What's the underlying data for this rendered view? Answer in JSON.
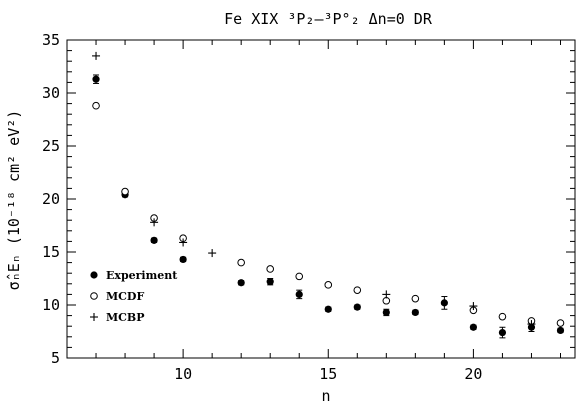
{
  "chart_data": {
    "type": "scatter",
    "title": "Fe XIX ³P₂–³P°₂ Δn=0 DR",
    "xlabel": "n",
    "ylabel": "σ̂ₙEₙ (10⁻¹⁸ cm² eV²)",
    "xlim": [
      6,
      23.5
    ],
    "ylim": [
      5,
      35
    ],
    "xticks": [
      10,
      15,
      20
    ],
    "yticks": [
      5,
      10,
      15,
      20,
      25,
      30,
      35
    ],
    "grid": false,
    "legend_position": "bottom-left",
    "series": [
      {
        "name": "Experiment",
        "marker": "filled-circle",
        "color": "#000000",
        "x": [
          7,
          8,
          9,
          10,
          12,
          13,
          14,
          15,
          16,
          17,
          18,
          19,
          20,
          21,
          22,
          23
        ],
        "y": [
          31.3,
          20.4,
          16.1,
          14.3,
          12.1,
          12.2,
          11.0,
          9.6,
          9.8,
          9.3,
          9.3,
          10.2,
          7.9,
          7.4,
          7.9,
          7.6
        ],
        "err": [
          0.4,
          0.2,
          0.2,
          0.2,
          0.2,
          0.3,
          0.4,
          0.2,
          0.2,
          0.3,
          0.2,
          0.6,
          0.2,
          0.5,
          0.4,
          0.2
        ]
      },
      {
        "name": "MCDF",
        "marker": "open-circle",
        "color": "#000000",
        "x": [
          7,
          8,
          9,
          10,
          12,
          13,
          14,
          15,
          16,
          17,
          18,
          20,
          21,
          22,
          23
        ],
        "y": [
          28.8,
          20.7,
          18.2,
          16.3,
          14.0,
          13.4,
          12.7,
          11.9,
          11.4,
          10.4,
          10.6,
          9.5,
          8.9,
          8.5,
          8.3
        ]
      },
      {
        "name": "MCBP",
        "marker": "plus",
        "color": "#000000",
        "x": [
          7,
          9,
          10,
          11,
          17,
          20,
          22
        ],
        "y": [
          33.5,
          17.8,
          15.9,
          14.9,
          11.0,
          9.9,
          8.2
        ]
      }
    ]
  }
}
